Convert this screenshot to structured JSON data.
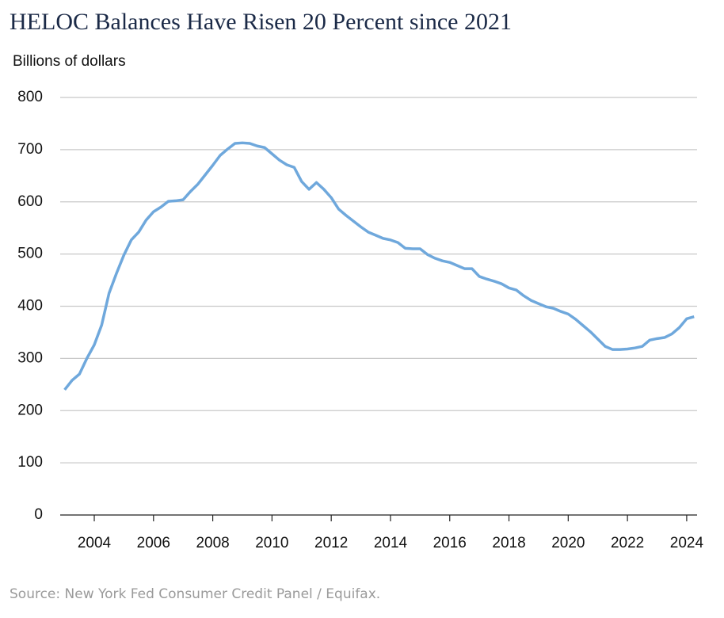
{
  "chart_data": {
    "type": "line",
    "title": "HELOC Balances Have Risen 20 Percent since 2021",
    "y_label": "Billions of dollars",
    "source": "Source: New York Fed Consumer Credit Panel / Equifax.",
    "x": [
      2003.0,
      2003.25,
      2003.5,
      2003.75,
      2004.0,
      2004.25,
      2004.5,
      2004.75,
      2005.0,
      2005.25,
      2005.5,
      2005.75,
      2006.0,
      2006.25,
      2006.5,
      2006.75,
      2007.0,
      2007.25,
      2007.5,
      2007.75,
      2008.0,
      2008.25,
      2008.5,
      2008.75,
      2009.0,
      2009.25,
      2009.5,
      2009.75,
      2010.0,
      2010.25,
      2010.5,
      2010.75,
      2011.0,
      2011.25,
      2011.5,
      2011.75,
      2012.0,
      2012.25,
      2012.5,
      2012.75,
      2013.0,
      2013.25,
      2013.5,
      2013.75,
      2014.0,
      2014.25,
      2014.5,
      2014.75,
      2015.0,
      2015.25,
      2015.5,
      2015.75,
      2016.0,
      2016.25,
      2016.5,
      2016.75,
      2017.0,
      2017.25,
      2017.5,
      2017.75,
      2018.0,
      2018.25,
      2018.5,
      2018.75,
      2019.0,
      2019.25,
      2019.5,
      2019.75,
      2020.0,
      2020.25,
      2020.5,
      2020.75,
      2021.0,
      2021.25,
      2021.5,
      2021.75,
      2022.0,
      2022.25,
      2022.5,
      2022.75,
      2023.0,
      2023.25,
      2023.5,
      2023.75,
      2024.0,
      2024.25
    ],
    "series": [
      {
        "color": "#6fa8dc",
        "values": [
          240,
          258,
          270,
          300,
          326,
          364,
          425,
          463,
          498,
          527,
          542,
          565,
          581,
          590,
          601,
          602,
          604,
          620,
          634,
          652,
          670,
          689,
          701,
          712,
          713,
          712,
          707,
          704,
          692,
          680,
          671,
          666,
          639,
          624,
          637,
          624,
          608,
          586,
          574,
          563,
          552,
          542,
          536,
          530,
          527,
          522,
          511,
          510,
          510,
          499,
          492,
          487,
          484,
          478,
          472,
          472,
          457,
          452,
          448,
          443,
          435,
          431,
          420,
          411,
          405,
          399,
          396,
          390,
          385,
          375,
          363,
          351,
          337,
          323,
          317,
          317,
          318,
          320,
          323,
          335,
          338,
          340,
          347,
          359,
          376,
          380
        ]
      }
    ],
    "xlim": [
      2002.85,
      2024.35
    ],
    "xticks": [
      2004,
      2006,
      2008,
      2010,
      2012,
      2014,
      2016,
      2018,
      2020,
      2022,
      2024
    ],
    "ylim": [
      0,
      800
    ],
    "yticks": [
      0,
      100,
      200,
      300,
      400,
      500,
      600,
      700,
      800
    ],
    "grid": true
  }
}
